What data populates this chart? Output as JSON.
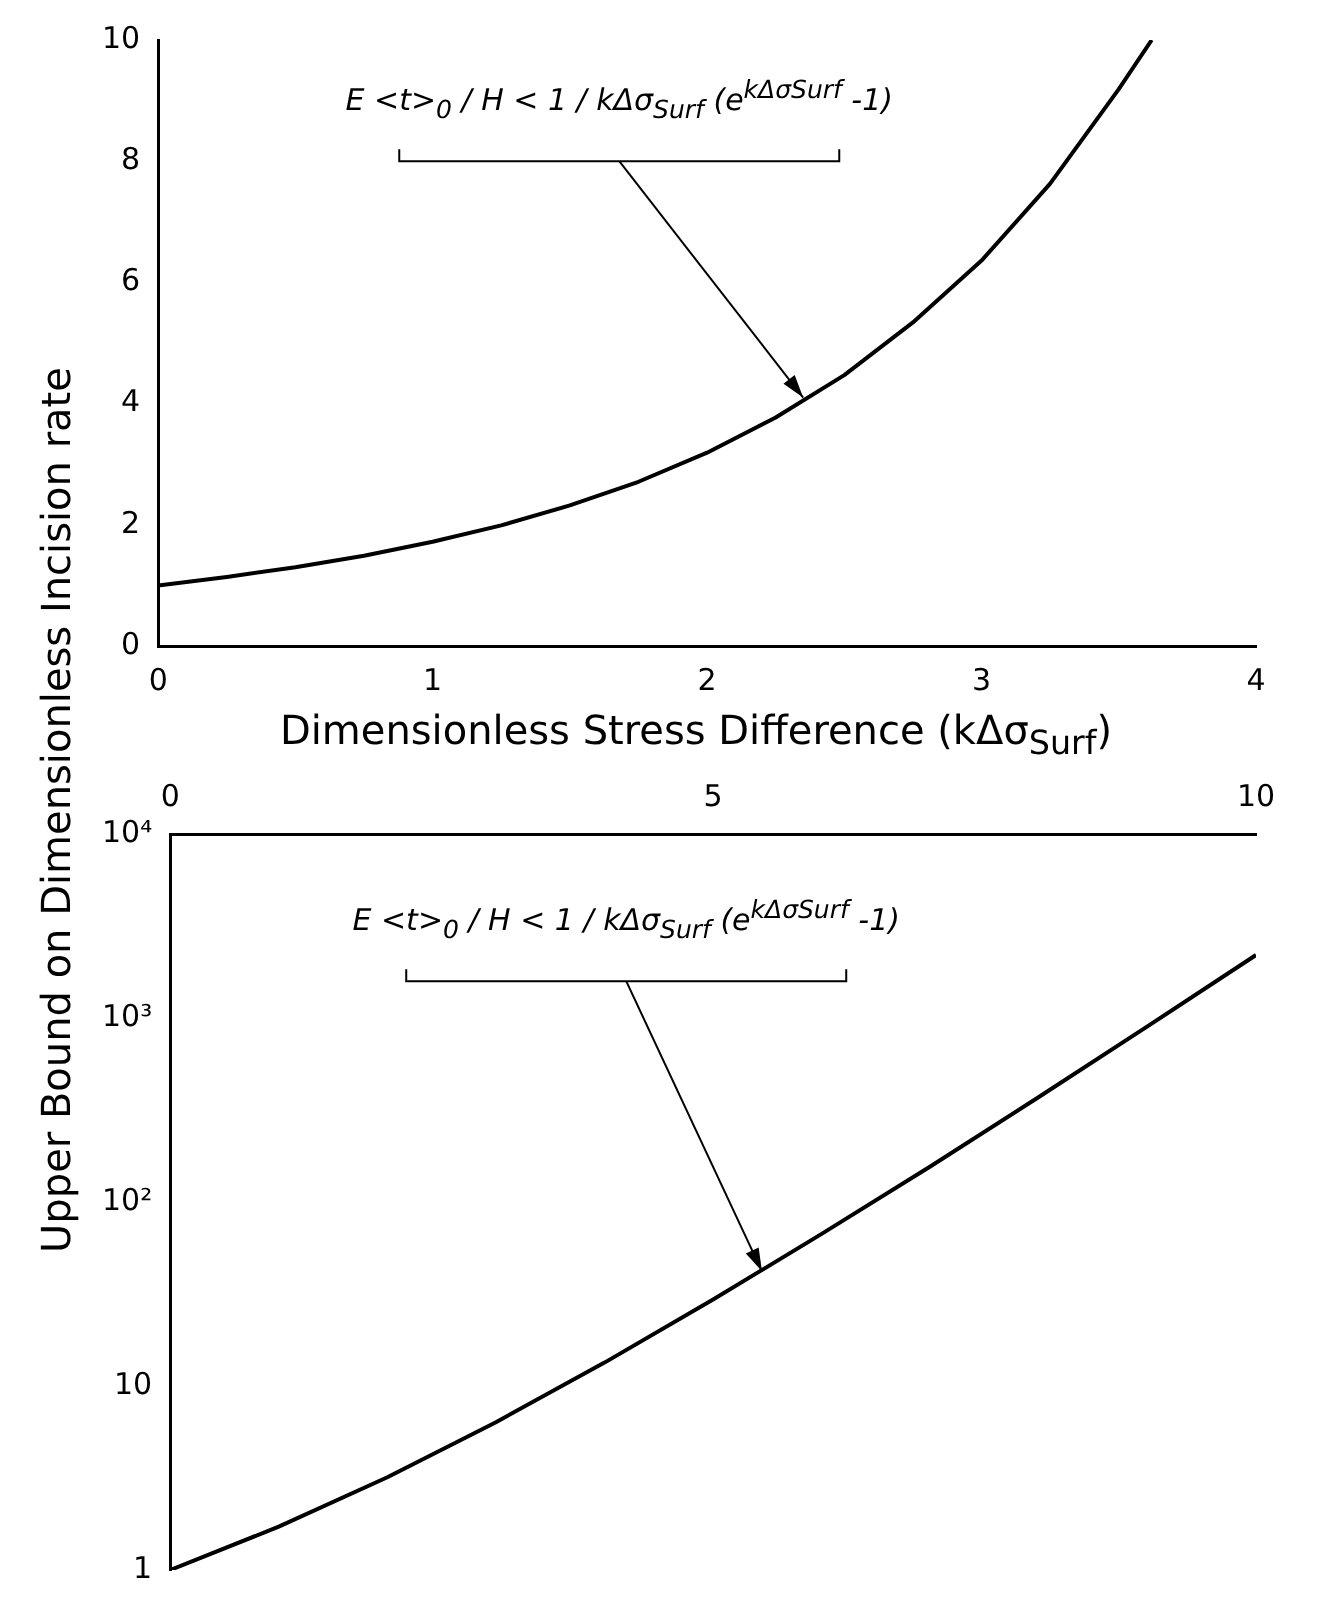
{
  "chart_data": [
    {
      "type": "line",
      "ylabel": "Upper Bound on Dimensionless Incision rate",
      "xlabel": "Dimensionless Stress Difference (kΔσ$_{Surf}$)",
      "x": [
        0,
        0.25,
        0.5,
        0.75,
        1,
        1.25,
        1.5,
        1.75,
        2,
        2.25,
        2.5,
        2.75,
        3,
        3.25,
        3.5,
        3.62
      ],
      "values": [
        1,
        1.14,
        1.3,
        1.49,
        1.72,
        1.99,
        2.32,
        2.71,
        3.19,
        3.77,
        4.47,
        5.34,
        6.36,
        7.63,
        9.19,
        10.0
      ],
      "color": "#000000",
      "xlim": [
        0,
        4
      ],
      "xticks": [
        0,
        1,
        2,
        3,
        4
      ],
      "ylim": [
        0,
        10
      ],
      "yticks": [
        0,
        2,
        4,
        6,
        8,
        10
      ],
      "annotations": [
        {
          "text": "E <t>$_{0}$ / H < 1 / kΔσ$_{Surf}$ (e$^{kΔσSurf}$ -1)",
          "x": 2.35,
          "y": 4.1
        }
      ]
    },
    {
      "type": "line",
      "log": "y",
      "x": [
        0,
        1,
        2,
        3,
        4,
        5,
        6,
        7,
        8,
        9,
        10
      ],
      "values": [
        1,
        1.72,
        3.19,
        6.36,
        13.4,
        29.5,
        67.1,
        156,
        372,
        900,
        2200
      ],
      "color": "#000000",
      "xlim": [
        0,
        10
      ],
      "xticks": [
        0,
        5,
        10
      ],
      "ylim": [
        1,
        10000
      ],
      "yticks": [
        1,
        10,
        {
          "value": 100,
          "label": "10²"
        },
        {
          "value": 1000,
          "label": "10³"
        },
        {
          "value": 10000,
          "label": "10⁴"
        }
      ],
      "annotations": [
        {
          "text": "E <t>$_{0}$ / H < 1 / kΔσ$_{Surf}$ (e$^{kΔσSurf}$ -1)",
          "x": 5.45,
          "y": 42
        }
      ]
    }
  ]
}
